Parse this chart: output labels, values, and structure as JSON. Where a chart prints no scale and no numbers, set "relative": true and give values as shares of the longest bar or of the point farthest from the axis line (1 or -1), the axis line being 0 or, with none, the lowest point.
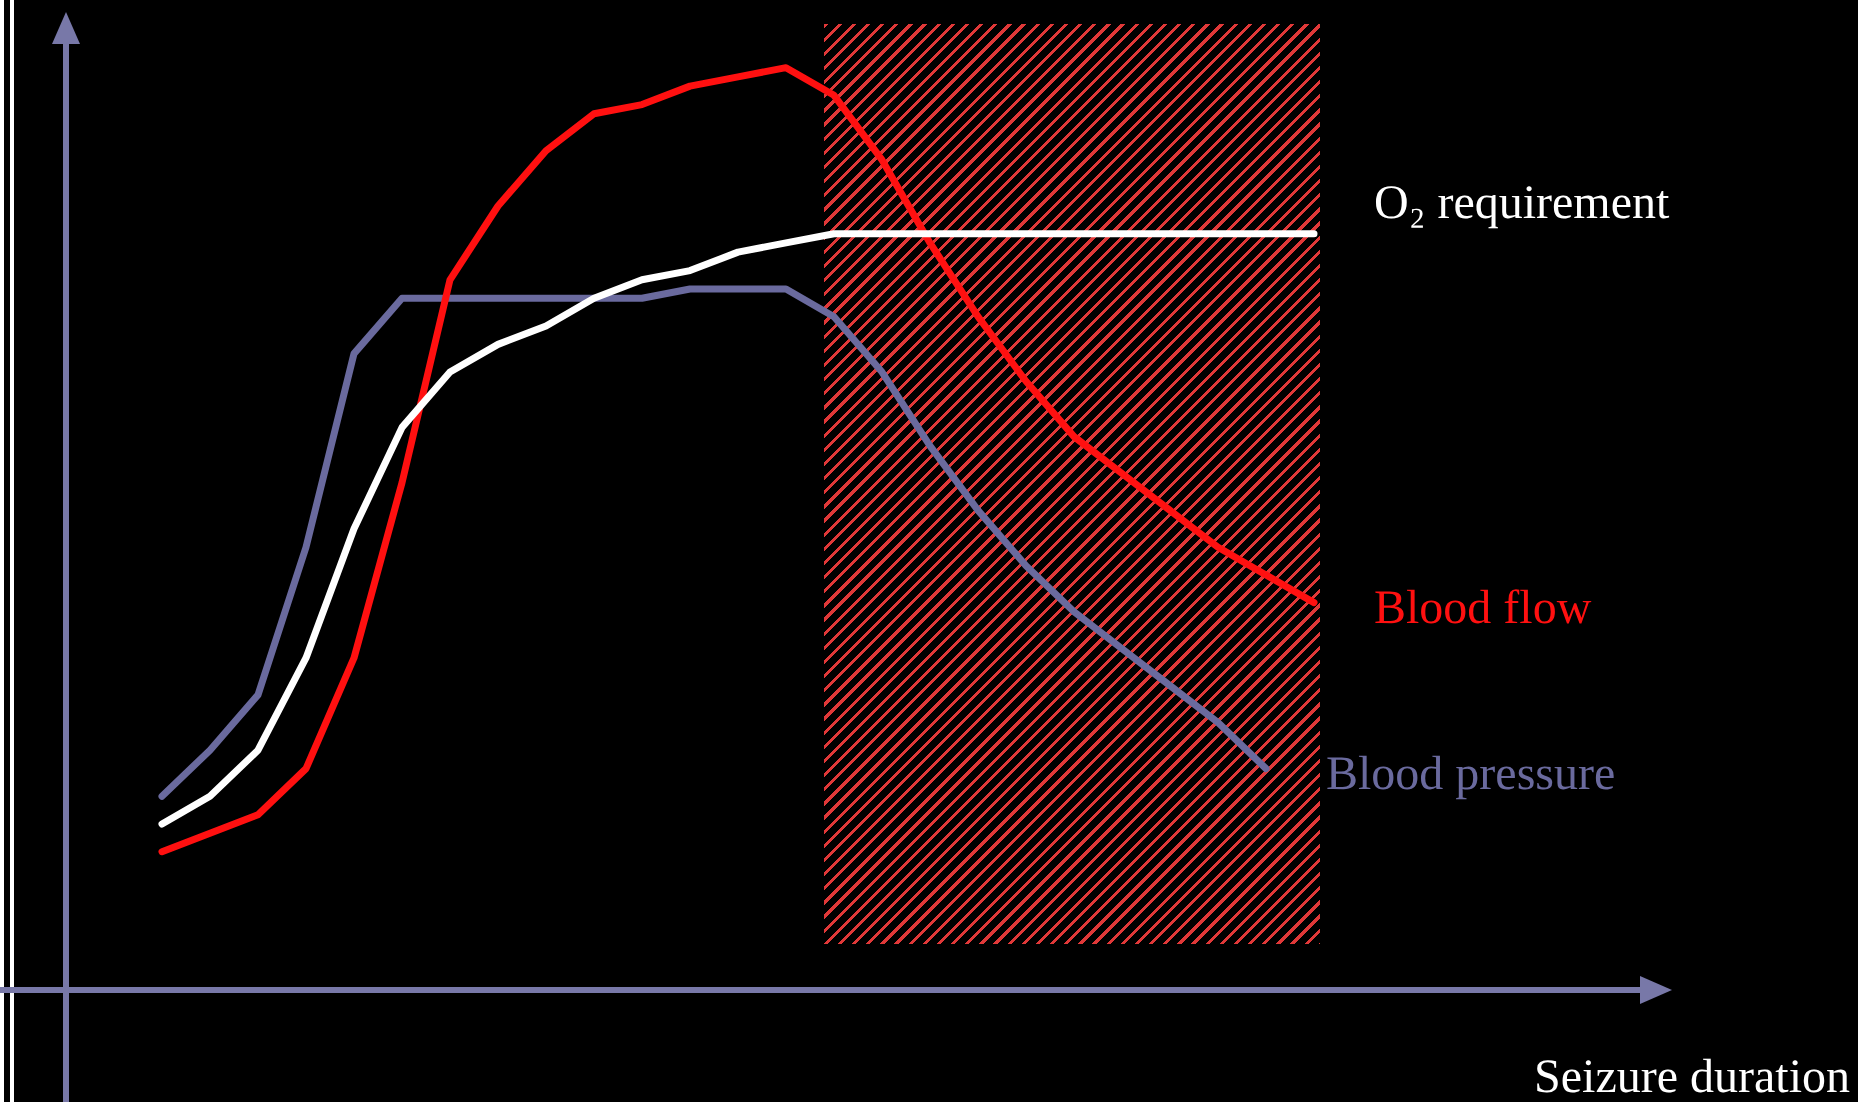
{
  "chart_data": {
    "type": "line",
    "relative": true,
    "xlabel": "Seizure duration",
    "legend": false,
    "marker": "none",
    "line_style": "solid",
    "categories": [
      null,
      null,
      null,
      null,
      null,
      null,
      null,
      null,
      null,
      null,
      null,
      null,
      null,
      null,
      null,
      null,
      null,
      null,
      null,
      null,
      null,
      null,
      null,
      null,
      null,
      null,
      null,
      null,
      null,
      null,
      null,
      null
    ],
    "series": [
      {
        "name": "O₂ requirement",
        "color": "#ffffff",
        "values": [
          null,
          null,
          0.18,
          0.21,
          0.26,
          0.36,
          0.5,
          0.61,
          0.67,
          0.7,
          0.72,
          0.75,
          0.77,
          0.78,
          0.8,
          0.81,
          0.82,
          0.82,
          0.82,
          0.82,
          0.82,
          0.82,
          0.82,
          0.82,
          0.82,
          0.82,
          0.82,
          null,
          null,
          null,
          null,
          null
        ]
      },
      {
        "name": "Blood flow",
        "color": "#ff1010",
        "values": [
          null,
          null,
          0.15,
          0.17,
          0.19,
          0.24,
          0.36,
          0.55,
          0.77,
          0.85,
          0.91,
          0.95,
          0.96,
          0.98,
          0.99,
          1,
          0.97,
          0.9,
          0.81,
          0.73,
          0.66,
          0.6,
          0.56,
          0.52,
          0.48,
          0.45,
          0.42,
          null,
          null,
          null,
          null,
          null
        ]
      },
      {
        "name": "Blood pressure",
        "color": "#6a6a9e",
        "values": [
          null,
          null,
          0.21,
          0.26,
          0.32,
          0.48,
          0.69,
          0.75,
          0.75,
          0.75,
          0.75,
          0.75,
          0.75,
          0.76,
          0.76,
          0.76,
          0.73,
          0.67,
          0.59,
          0.52,
          0.46,
          0.41,
          0.37,
          0.33,
          0.29,
          0.24,
          null,
          null,
          null,
          null,
          null,
          null
        ]
      }
    ]
  }
}
